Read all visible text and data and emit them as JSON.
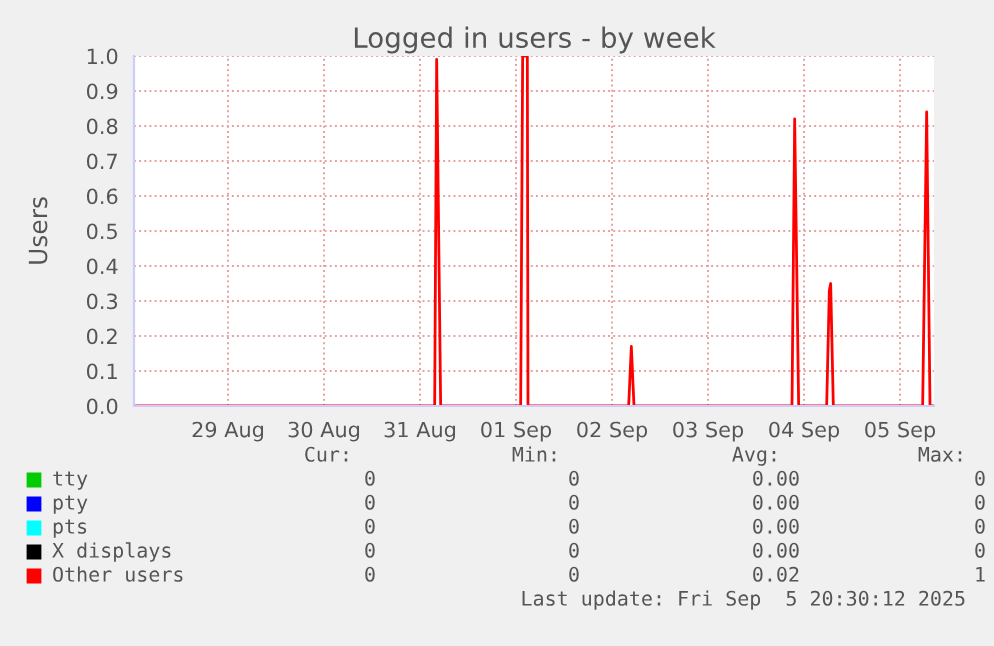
{
  "chart_data": {
    "type": "line",
    "title": "Logged in users - by week",
    "ylabel": "Users",
    "xlim": [
      "2025-08-28T12:30",
      "2025-09-05T20:30"
    ],
    "xticks": [
      {
        "value": "2025-08-29T12:00",
        "label": "29 Aug"
      },
      {
        "value": "2025-08-30T12:00",
        "label": "30 Aug"
      },
      {
        "value": "2025-08-31T12:00",
        "label": "31 Aug"
      },
      {
        "value": "2025-09-01T12:00",
        "label": "01 Sep"
      },
      {
        "value": "2025-09-02T12:00",
        "label": "02 Sep"
      },
      {
        "value": "2025-09-03T12:00",
        "label": "03 Sep"
      },
      {
        "value": "2025-09-04T12:00",
        "label": "04 Sep"
      },
      {
        "value": "2025-09-05T12:00",
        "label": "05 Sep"
      }
    ],
    "ylim": [
      0,
      1
    ],
    "yticks": [
      {
        "value": 0,
        "label": "0.0"
      },
      {
        "value": 0.1,
        "label": "0.1"
      },
      {
        "value": 0.2,
        "label": "0.2"
      },
      {
        "value": 0.3,
        "label": "0.3"
      },
      {
        "value": 0.4,
        "label": "0.4"
      },
      {
        "value": 0.5,
        "label": "0.5"
      },
      {
        "value": 0.6,
        "label": "0.6"
      },
      {
        "value": 0.7,
        "label": "0.7"
      },
      {
        "value": 0.8,
        "label": "0.8"
      },
      {
        "value": 0.9,
        "label": "0.9"
      },
      {
        "value": 1,
        "label": "1.0"
      }
    ],
    "grid": true,
    "legend": "bottom",
    "series": [
      {
        "name": "tty",
        "color": "#00cc00"
      },
      {
        "name": "pty",
        "color": "#0000ff"
      },
      {
        "name": "pts",
        "color": "#00ffff"
      },
      {
        "name": "X displays",
        "color": "#000000"
      },
      {
        "name": "Other users",
        "color": "#ff0000",
        "x": [
          "2025-08-28T12:30",
          "2025-08-31T15:40",
          "2025-08-31T16:10",
          "2025-08-31T17:10",
          "2025-09-01T13:10",
          "2025-09-01T13:40",
          "2025-09-01T14:50",
          "2025-09-01T15:00",
          "2025-09-02T16:10",
          "2025-09-02T16:50",
          "2025-09-02T17:30",
          "2025-09-04T09:00",
          "2025-09-04T09:40",
          "2025-09-04T10:40",
          "2025-09-04T17:40",
          "2025-09-04T18:20",
          "2025-09-04T18:40",
          "2025-09-04T19:20",
          "2025-09-05T17:40",
          "2025-09-05T18:40",
          "2025-09-05T19:30",
          "2025-09-05T20:30"
        ],
        "values": [
          0,
          0,
          0.99,
          0,
          0,
          1,
          1,
          0,
          0,
          0.17,
          0,
          0,
          0.82,
          0,
          0,
          0.33,
          0.35,
          0,
          0,
          0.84,
          0,
          0
        ]
      }
    ],
    "annotations": [
      "Cur:",
      "Min:",
      "Avg:",
      "Max:",
      "0",
      "0",
      "0.00",
      "0",
      "0",
      "0",
      "0.00",
      "0",
      "0",
      "0",
      "0.00",
      "0",
      "0",
      "0",
      "0.00",
      "0",
      "0",
      "0",
      "0.02",
      "1",
      "Last update: Fri Sep  5 20:30:12 2025"
    ]
  }
}
